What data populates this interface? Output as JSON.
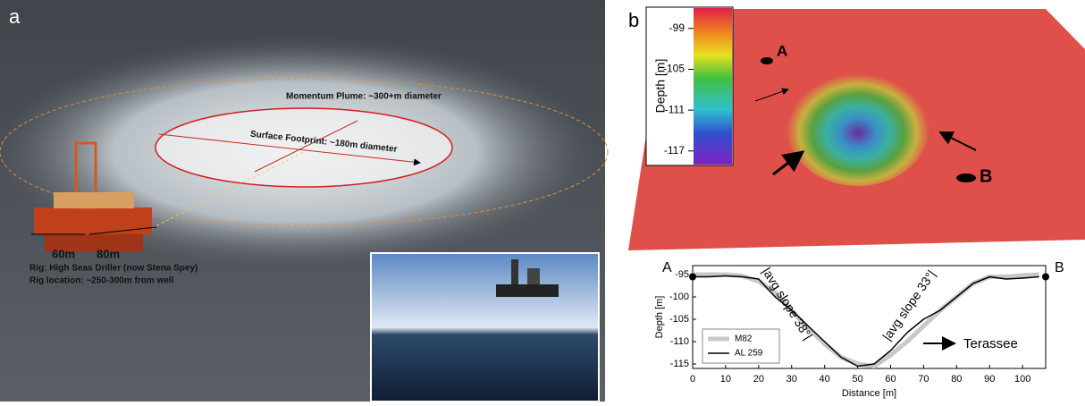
{
  "panel_a": {
    "label": "a",
    "annotations": [
      "Momentum Plume: ~300+m diameter",
      "Surface Footprint: ~180m diameter",
      "60m",
      "80m",
      "Rig: High Seas Driller (now Stena Spey)",
      "Rig location: ~250-300m from well"
    ]
  },
  "panel_b": {
    "label": "b",
    "markers": [
      "A",
      "B"
    ],
    "colorbar": {
      "label": "Depth [m]",
      "lim": [
        -119,
        -96
      ],
      "ticks": [
        -99,
        -105,
        -111,
        -117
      ]
    }
  },
  "chart_data": {
    "type": "line",
    "xlabel": "Distance [m]",
    "ylabel": "Depth [m]",
    "start_label": "A",
    "end_label": "B",
    "annotations": [
      "|avg slope 38°|",
      "|avg slope 33°|",
      "Terassee"
    ],
    "x": [
      0,
      5,
      10,
      15,
      20,
      25,
      30,
      35,
      40,
      45,
      50,
      55,
      60,
      65,
      70,
      75,
      80,
      85,
      90,
      95,
      100,
      105
    ],
    "series": [
      {
        "name": "M82",
        "color": "#c8c8c8",
        "values": [
          -95,
          -95,
          -95,
          -95.3,
          -96.5,
          -99,
          -103,
          -107,
          -110.5,
          -113.5,
          -115,
          -115.5,
          -113,
          -110,
          -106.5,
          -103,
          -100,
          -97,
          -95.5,
          -95.5,
          -95.2,
          -95
        ]
      },
      {
        "name": "AL 259",
        "color": "#000000",
        "values": [
          -95.5,
          -95.5,
          -95.3,
          -95.5,
          -96,
          -100,
          -103,
          -106.5,
          -110,
          -113.5,
          -115.5,
          -115,
          -112,
          -108,
          -105,
          -103,
          -100,
          -97,
          -95.5,
          -96,
          -95.8,
          -95.5
        ]
      }
    ],
    "xlim": [
      0,
      107
    ],
    "ylim": [
      -116,
      -93
    ],
    "xticks": [
      0,
      10,
      20,
      30,
      40,
      50,
      60,
      70,
      80,
      90,
      100
    ],
    "yticks": [
      -95,
      -100,
      -105,
      -110,
      -115
    ],
    "legend": "lower-left"
  }
}
